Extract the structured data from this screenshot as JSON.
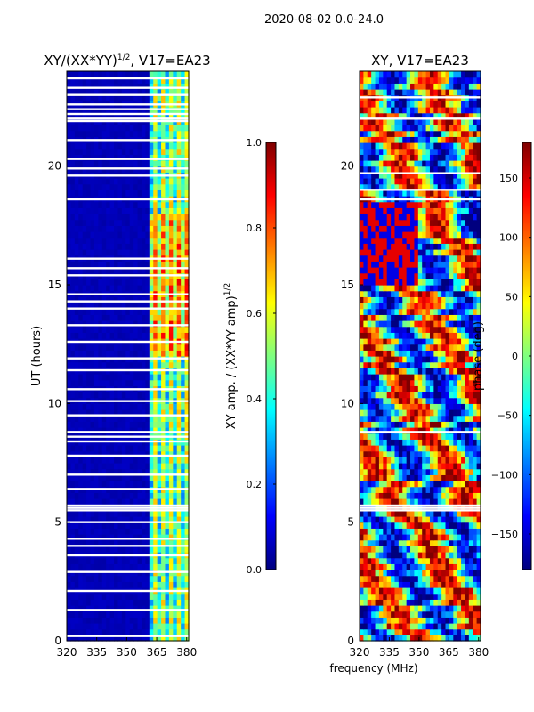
{
  "figure": {
    "suptitle": "2020-08-02 0.0-24.0",
    "xlabel": "frequency (MHz)"
  },
  "colors": {
    "jet": [
      "#00007f",
      "#0000ff",
      "#007fff",
      "#00ffff",
      "#7fff7f",
      "#ffff00",
      "#ff7f00",
      "#ff0000",
      "#7f0000"
    ],
    "gap": "#ffffff"
  },
  "chart_data": [
    {
      "type": "heatmap",
      "title_main": "XY/(XX*YY)",
      "title_sup": "1/2",
      "title_tail": ", V17=EA23",
      "ylabel": "UT (hours)",
      "xlim": [
        320,
        381
      ],
      "ylim": [
        0,
        24
      ],
      "xticks": [
        320,
        335,
        350,
        365,
        380
      ],
      "yticks": [
        0,
        5,
        10,
        15,
        20
      ],
      "colorbar": {
        "label_main": "XY amp. / (XX*YY amp)",
        "label_sup": "1/2",
        "range": [
          0.0,
          1.0
        ],
        "ticks": [
          "0.0",
          "0.2",
          "0.4",
          "0.6",
          "0.8",
          "1.0"
        ],
        "tick_values": [
          0.0,
          0.2,
          0.4,
          0.6,
          0.8,
          1.0
        ]
      },
      "flagged_hours": [
        0.2,
        1.3,
        2.1,
        2.9,
        3.6,
        4.0,
        4.3,
        5.0,
        5.5,
        5.6,
        5.7,
        6.4,
        7.0,
        7.8,
        8.4,
        8.6,
        8.8,
        9.5,
        10.1,
        10.6,
        11.4,
        11.9,
        12.6,
        13.3,
        14.0,
        14.3,
        14.6,
        15.4,
        15.7,
        16.1,
        18.6,
        19.6,
        19.9,
        20.3,
        21.1,
        21.9,
        22.0,
        22.2,
        22.4,
        22.6,
        23.0,
        23.3,
        23.7
      ],
      "description": "Low amplitude (~0.05) below 362 MHz; bright channels ~0.4-0.75 between 362 and 381 MHz."
    },
    {
      "type": "heatmap",
      "title_main": "XY, V17=EA23",
      "ylabel": "",
      "xlim": [
        320,
        381
      ],
      "ylim": [
        0,
        24
      ],
      "xticks": [
        320,
        335,
        350,
        365,
        380
      ],
      "yticks": [
        0,
        5,
        10,
        15,
        20
      ],
      "colorbar": {
        "label_main": "phase (deg)",
        "range": [
          -180,
          180
        ],
        "ticks": [
          "150",
          "100",
          "50",
          "0",
          "−50",
          "−100",
          "−150"
        ],
        "tick_values": [
          150,
          100,
          50,
          0,
          -50,
          -100,
          -150
        ]
      },
      "flagged_hours": [
        5.5,
        5.6,
        5.7,
        8.8,
        18.6,
        19.0,
        19.7,
        22.0,
        22.9
      ],
      "description": "Phase in degrees, varying from about -180 to 180 across frequency and time."
    }
  ]
}
